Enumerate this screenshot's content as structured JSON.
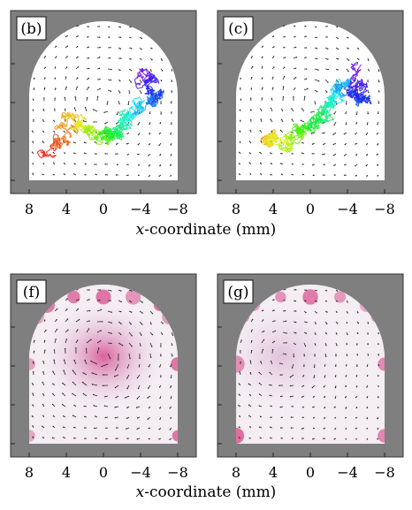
{
  "figure": {
    "panels": [
      {
        "label": "(b)",
        "kind": "trajectory",
        "cmap_offset": 0.0
      },
      {
        "label": "(c)",
        "kind": "trajectory",
        "cmap_offset": 0.35
      },
      {
        "label": "(f)",
        "kind": "field",
        "vortex_center_mm": 0.0,
        "intensity": 1.0
      },
      {
        "label": "(g)",
        "kind": "field",
        "vortex_center_mm": 3.0,
        "intensity": 0.55
      }
    ],
    "xticks": [
      "8",
      "4",
      "0",
      "−4",
      "−8"
    ],
    "xtick_values": [
      8,
      4,
      0,
      -4,
      -8
    ],
    "xlabel_var": "x",
    "xlabel_rest": "-coordinate (mm)",
    "colors": {
      "frame": "#7f7f7f",
      "chamber": "#ffffff",
      "arrow": "#222222",
      "vortex": "#d3307a"
    },
    "chart_data": {
      "type": "scatter",
      "xlim": [
        9.5,
        -9.5
      ],
      "xlabel": "x-coordinate (mm)",
      "grid": false
    }
  }
}
